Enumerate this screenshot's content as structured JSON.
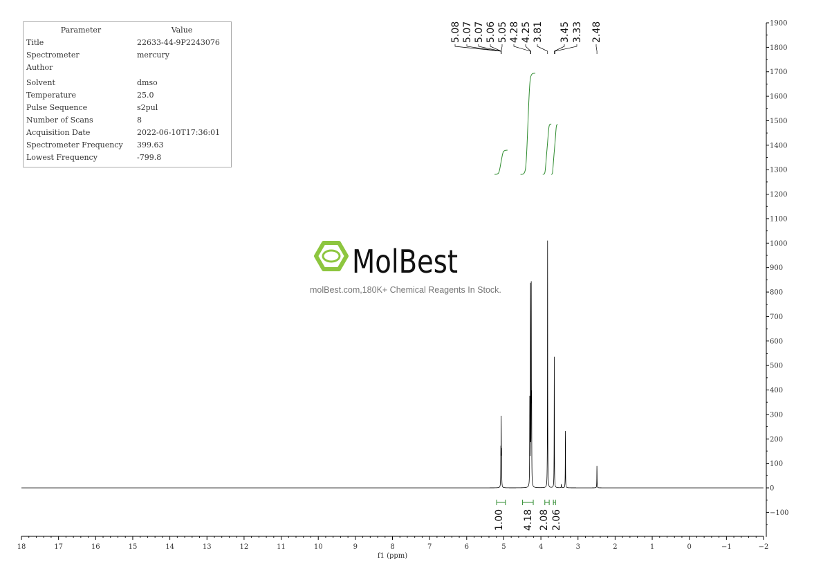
{
  "parameters": {
    "header": {
      "parameter": "Parameter",
      "value": "Value"
    },
    "rows": [
      {
        "k": "Title",
        "v": "22633-44-9P2243076"
      },
      {
        "k": "Spectrometer",
        "v": "mercury"
      },
      {
        "k": "Author",
        "v": ""
      },
      {
        "k": "Solvent",
        "v": "dmso"
      },
      {
        "k": "Temperature",
        "v": "25.0"
      },
      {
        "k": "Pulse Sequence",
        "v": "s2pul"
      },
      {
        "k": "Number of Scans",
        "v": "8"
      },
      {
        "k": "Acquisition Date",
        "v": "2022-06-10T17:36:01"
      },
      {
        "k": "Spectrometer Frequency",
        "v": "399.63"
      },
      {
        "k": "Lowest Frequency",
        "v": "-799.8"
      }
    ]
  },
  "watermark": {
    "logo_text": "MolBest",
    "tagline": "molBest.com,180K+ Chemical Reagents In Stock.",
    "logo_color": "#8dc63f"
  },
  "chart_data": {
    "type": "line",
    "xlabel": "f1 (ppm)",
    "xlim": [
      18,
      -2
    ],
    "ylim": [
      -200,
      1900
    ],
    "x_ticks": [
      18,
      17,
      16,
      15,
      14,
      13,
      12,
      11,
      10,
      9,
      8,
      7,
      6,
      5,
      4,
      3,
      2,
      1,
      0,
      -1,
      -2
    ],
    "y_ticks": [
      1900,
      1800,
      1700,
      1600,
      1500,
      1400,
      1300,
      1200,
      1100,
      1000,
      900,
      800,
      700,
      600,
      500,
      400,
      300,
      200,
      100,
      0,
      -100
    ],
    "y_axis_position": "right",
    "grid": false,
    "line_color": "#000000",
    "integral_color": "#2e8b2e",
    "peaks": [
      {
        "ppm": 5.08,
        "height": 140
      },
      {
        "ppm": 5.07,
        "height": 265
      },
      {
        "ppm": 5.06,
        "height": 130
      },
      {
        "ppm": 4.3,
        "height": 345
      },
      {
        "ppm": 4.28,
        "height": 800
      },
      {
        "ppm": 4.26,
        "height": 785
      },
      {
        "ppm": 4.25,
        "height": 300
      },
      {
        "ppm": 3.82,
        "height": 1010
      },
      {
        "ppm": 3.64,
        "height": 535
      },
      {
        "ppm": 3.45,
        "height": 15
      },
      {
        "ppm": 3.34,
        "height": 232
      },
      {
        "ppm": 2.49,
        "height": 90
      }
    ],
    "peak_labels": [
      "5.08",
      "5.07",
      "5.07",
      "5.06",
      "5.05",
      "4.28",
      "4.25",
      "3.81",
      "3.45",
      "3.33",
      "2.48"
    ],
    "integrals": [
      {
        "from": 5.25,
        "to": 4.9,
        "value": "1.00"
      },
      {
        "from": 4.55,
        "to": 4.15,
        "value": "4.18"
      },
      {
        "from": 3.95,
        "to": 3.72,
        "value": "2.08"
      },
      {
        "from": 3.72,
        "to": 3.55,
        "value": "2.06"
      }
    ]
  }
}
